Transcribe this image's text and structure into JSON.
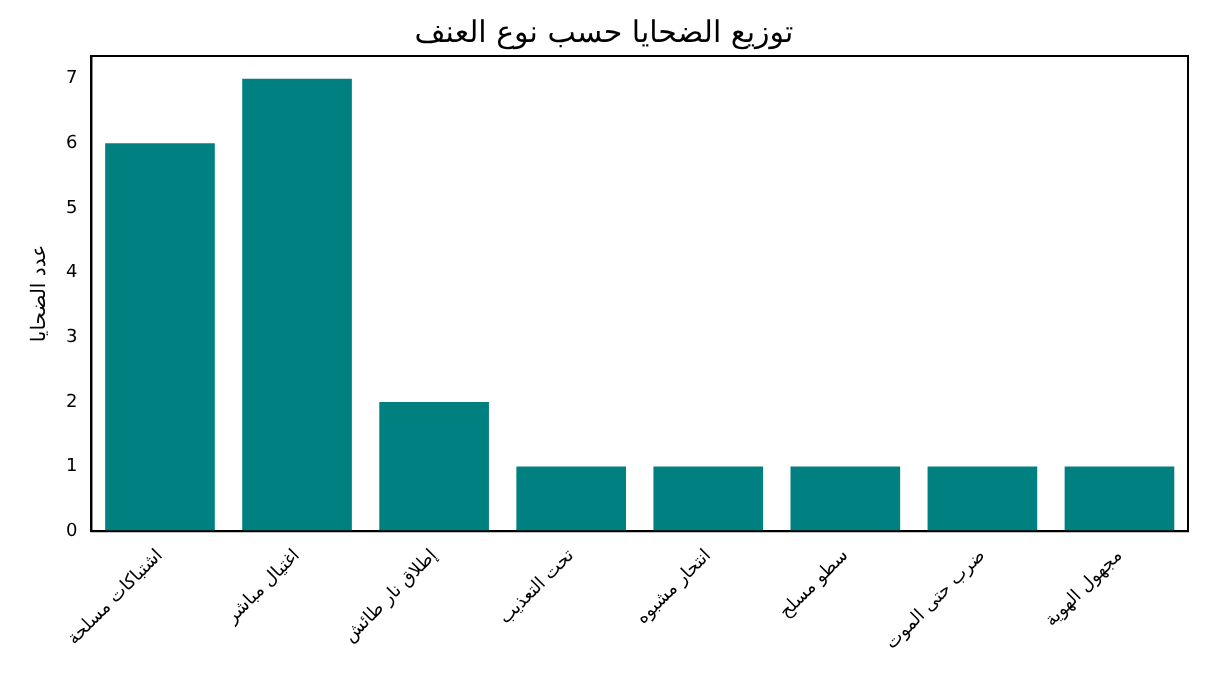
{
  "chart_data": {
    "type": "bar",
    "title": "توزيع الضحايا حسب نوع العنف",
    "ylabel": "عدد الضحايا",
    "categories": [
      "اشتباكات مسلحة",
      "اغتيال مباشر",
      "إطلاق نار طائش",
      "تحت التعذيب",
      "انتحار مشبوه",
      "سطو مسلح",
      "ضرب حتى الموت",
      "مجهول الهوية"
    ],
    "values": [
      6,
      7,
      2,
      1,
      1,
      1,
      1,
      1
    ],
    "color": "#008080",
    "ylim": [
      0,
      7.35
    ],
    "yticks": [
      0,
      1,
      2,
      3,
      4,
      5,
      6,
      7
    ],
    "grid": false,
    "legend": false
  }
}
